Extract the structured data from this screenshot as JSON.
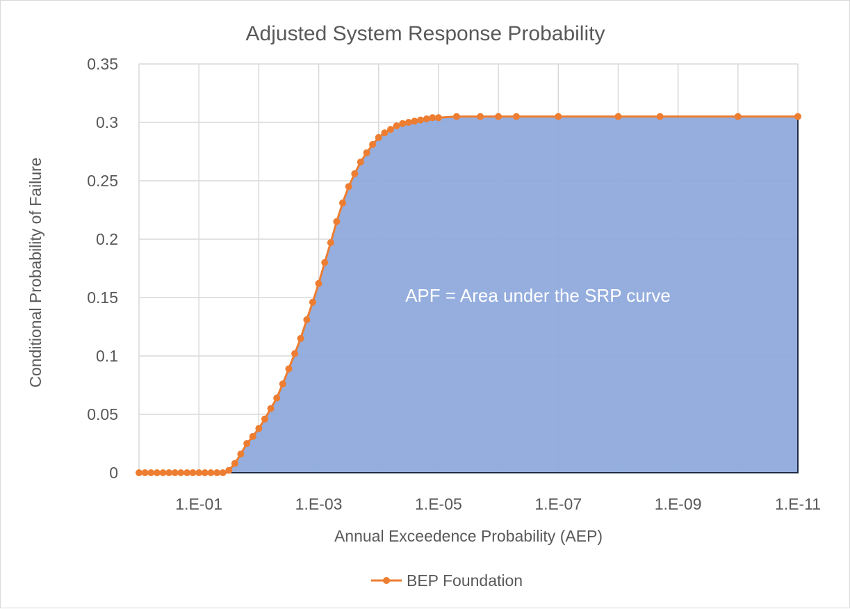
{
  "chart_data": {
    "type": "line",
    "title": "Adjusted System Response Probability",
    "xlabel": "Annual Exceedence Probability (AEP)",
    "ylabel": "Conditional Probability of Failure",
    "x_scale": "log-reversed",
    "xlim": [
      1,
      1e-11
    ],
    "ylim": [
      0,
      0.35
    ],
    "grid": true,
    "legend_position": "bottom",
    "x_tick_labels": [
      "1.E-01",
      "1.E-03",
      "1.E-05",
      "1.E-07",
      "1.E-09",
      "1.E-11"
    ],
    "y_tick_labels": [
      "0",
      "0.05",
      "0.1",
      "0.15",
      "0.2",
      "0.25",
      "0.3",
      "0.35"
    ],
    "annotation": "APF = Area under the SRP curve",
    "series": [
      {
        "name": "BEP Foundation",
        "color": "#ED7D31",
        "marker": "circle",
        "x": [
          1,
          0.794,
          0.631,
          0.501,
          0.398,
          0.316,
          0.251,
          0.2,
          0.158,
          0.126,
          0.1,
          0.0794,
          0.0631,
          0.0501,
          0.0398,
          0.0316,
          0.0251,
          0.02,
          0.0158,
          0.0126,
          0.01,
          0.00794,
          0.00631,
          0.00501,
          0.00398,
          0.00316,
          0.00251,
          0.002,
          0.00158,
          0.00126,
          0.001,
          0.000794,
          0.000631,
          0.000501,
          0.000398,
          0.000316,
          0.000251,
          0.0002,
          0.000158,
          0.000126,
          0.0001,
          7.94e-05,
          6.31e-05,
          5.01e-05,
          3.98e-05,
          3.16e-05,
          2.51e-05,
          2e-05,
          1.58e-05,
          1.26e-05,
          1e-05,
          5e-06,
          2e-06,
          1e-06,
          5e-07,
          1e-07,
          1e-08,
          2e-09,
          1e-10,
          1e-11
        ],
        "y": [
          0,
          0,
          0,
          0,
          0,
          0,
          0,
          0,
          0,
          0,
          0,
          0,
          0,
          0,
          0,
          0.002,
          0.008,
          0.016,
          0.025,
          0.031,
          0.038,
          0.046,
          0.055,
          0.064,
          0.076,
          0.089,
          0.102,
          0.115,
          0.131,
          0.146,
          0.162,
          0.18,
          0.197,
          0.215,
          0.231,
          0.245,
          0.256,
          0.266,
          0.274,
          0.281,
          0.287,
          0.291,
          0.294,
          0.297,
          0.299,
          0.3,
          0.301,
          0.302,
          0.303,
          0.304,
          0.304,
          0.305,
          0.305,
          0.305,
          0.305,
          0.305,
          0.305,
          0.305,
          0.305,
          0.305
        ]
      }
    ]
  }
}
